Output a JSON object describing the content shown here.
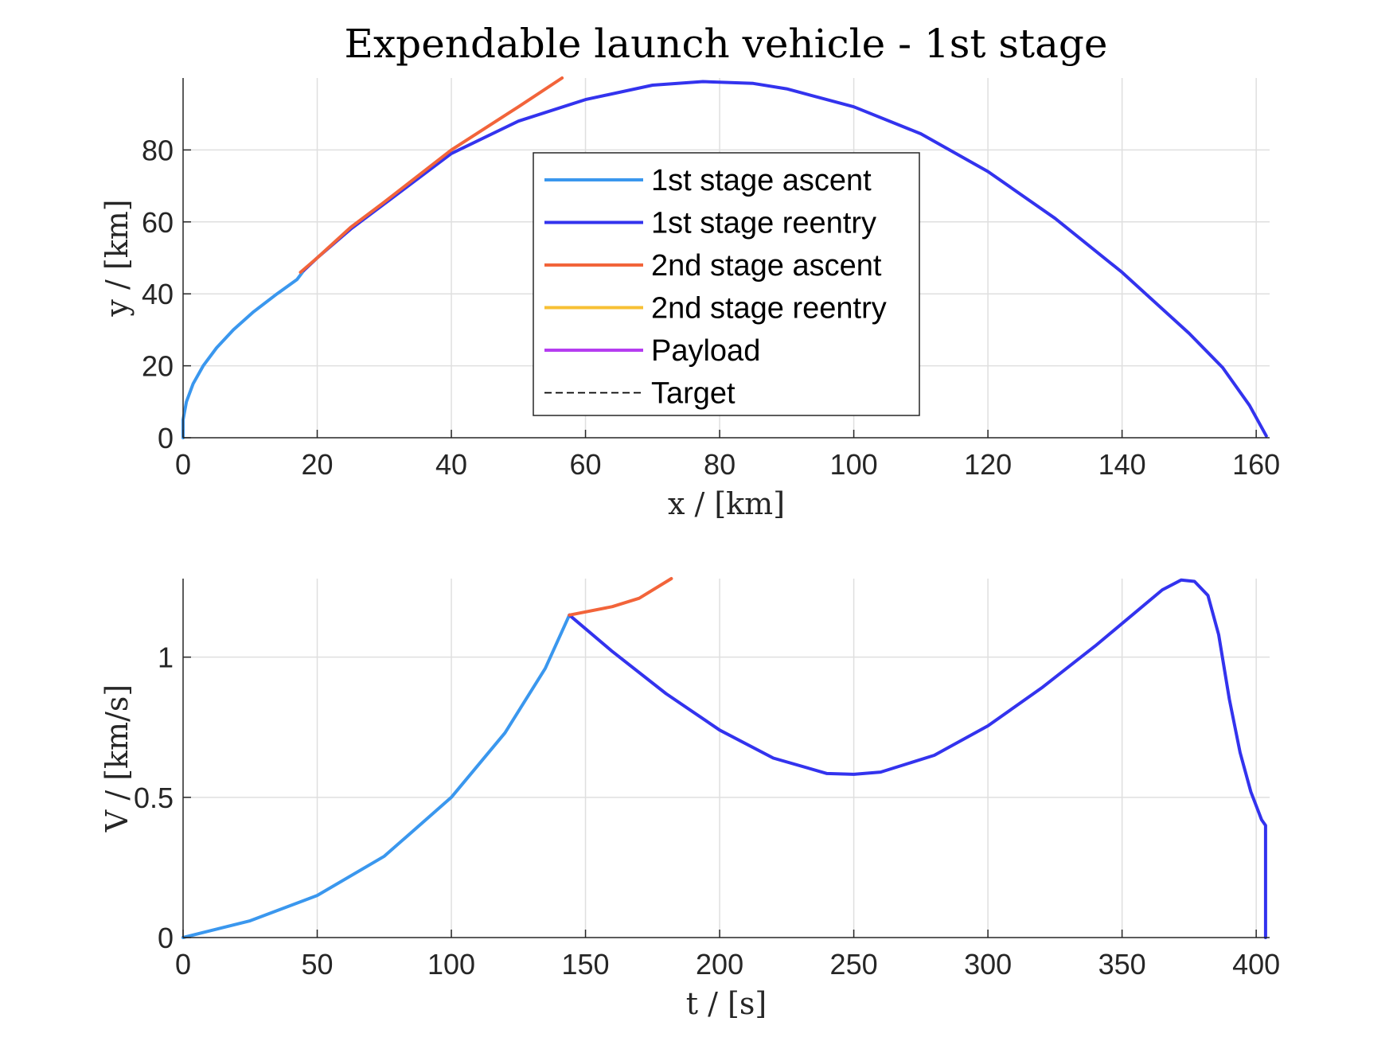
{
  "title": "Expendable launch vehicle - 1st stage",
  "colors": {
    "stage1_ascent": "#3a97ee",
    "stage1_reentry": "#3333ee",
    "stage2_ascent": "#f2643a",
    "stage2_reentry": "#f7c034",
    "payload": "#b53cf0",
    "target": "#000000"
  },
  "legend": {
    "placement": "inside top-center of upper plot",
    "entries": [
      {
        "label": "1st stage ascent",
        "color": "#3a97ee",
        "style": "solid"
      },
      {
        "label": "1st stage reentry",
        "color": "#3333ee",
        "style": "solid"
      },
      {
        "label": "2nd stage ascent",
        "color": "#f2643a",
        "style": "solid"
      },
      {
        "label": "2nd stage reentry",
        "color": "#f7c034",
        "style": "solid"
      },
      {
        "label": "Payload",
        "color": "#b53cf0",
        "style": "solid"
      },
      {
        "label": "Target",
        "color": "#000000",
        "style": "dashed"
      }
    ]
  },
  "chart_data": [
    {
      "type": "line",
      "xlabel": "x / [km]",
      "ylabel": "y / [km]",
      "xlim": [
        0,
        162
      ],
      "ylim": [
        0,
        100
      ],
      "grid": true,
      "xticks": [
        0,
        20,
        40,
        60,
        80,
        100,
        120,
        140,
        160
      ],
      "yticks": [
        0,
        20,
        40,
        60,
        80
      ],
      "series": [
        {
          "name": "1st stage ascent",
          "color": "#3a97ee",
          "points": [
            [
              0,
              0
            ],
            [
              0,
              5
            ],
            [
              0.5,
              10
            ],
            [
              1.5,
              15
            ],
            [
              3,
              20
            ],
            [
              5,
              25
            ],
            [
              7.5,
              30
            ],
            [
              10.5,
              35
            ],
            [
              14,
              40
            ],
            [
              17,
              44
            ],
            [
              18,
              46.5
            ]
          ]
        },
        {
          "name": "1st stage reentry",
          "color": "#3333ee",
          "points": [
            [
              18,
              46.5
            ],
            [
              20,
              50
            ],
            [
              25,
              58
            ],
            [
              30,
              65
            ],
            [
              40,
              79
            ],
            [
              50,
              88
            ],
            [
              60,
              94
            ],
            [
              70,
              98
            ],
            [
              77.5,
              99
            ],
            [
              85,
              98.5
            ],
            [
              90,
              97
            ],
            [
              100,
              92
            ],
            [
              110,
              84.5
            ],
            [
              120,
              74
            ],
            [
              130,
              61
            ],
            [
              140,
              46
            ],
            [
              150,
              29
            ],
            [
              155,
              19.5
            ],
            [
              159,
              9
            ],
            [
              161.5,
              0.5
            ]
          ]
        },
        {
          "name": "2nd stage ascent",
          "color": "#f2643a",
          "points": [
            [
              17.5,
              46
            ],
            [
              20,
              50
            ],
            [
              25,
              58.5
            ],
            [
              30,
              65.5
            ],
            [
              40,
              80
            ],
            [
              50,
              92
            ],
            [
              56.5,
              100
            ]
          ]
        }
      ]
    },
    {
      "type": "line",
      "xlabel": "t / [s]",
      "ylabel": "V / [km/s]",
      "xlim": [
        0,
        405
      ],
      "ylim": [
        0,
        1.28
      ],
      "grid": true,
      "xticks": [
        0,
        50,
        100,
        150,
        200,
        250,
        300,
        350,
        400
      ],
      "yticks": [
        0,
        0.5,
        1
      ],
      "ytick_labels": [
        "0",
        "0.5",
        "1"
      ],
      "series": [
        {
          "name": "1st stage ascent",
          "color": "#3a97ee",
          "points": [
            [
              0,
              0
            ],
            [
              25,
              0.06
            ],
            [
              50,
              0.15
            ],
            [
              75,
              0.29
            ],
            [
              100,
              0.5
            ],
            [
              120,
              0.73
            ],
            [
              135,
              0.96
            ],
            [
              144,
              1.15
            ]
          ]
        },
        {
          "name": "1st stage reentry",
          "color": "#3333ee",
          "points": [
            [
              144,
              1.15
            ],
            [
              160,
              1.02
            ],
            [
              180,
              0.87
            ],
            [
              200,
              0.74
            ],
            [
              220,
              0.64
            ],
            [
              240,
              0.585
            ],
            [
              250,
              0.582
            ],
            [
              260,
              0.59
            ],
            [
              280,
              0.65
            ],
            [
              300,
              0.755
            ],
            [
              320,
              0.89
            ],
            [
              340,
              1.04
            ],
            [
              355,
              1.16
            ],
            [
              365,
              1.24
            ],
            [
              372,
              1.275
            ],
            [
              377,
              1.27
            ],
            [
              382,
              1.22
            ],
            [
              386,
              1.08
            ],
            [
              390,
              0.85
            ],
            [
              394,
              0.66
            ],
            [
              398,
              0.52
            ],
            [
              402,
              0.42
            ],
            [
              403.5,
              0.4
            ],
            [
              403.5,
              0
            ]
          ]
        },
        {
          "name": "2nd stage ascent",
          "color": "#f2643a",
          "points": [
            [
              144,
              1.15
            ],
            [
              160,
              1.18
            ],
            [
              170,
              1.21
            ],
            [
              182,
              1.28
            ]
          ]
        }
      ]
    }
  ]
}
